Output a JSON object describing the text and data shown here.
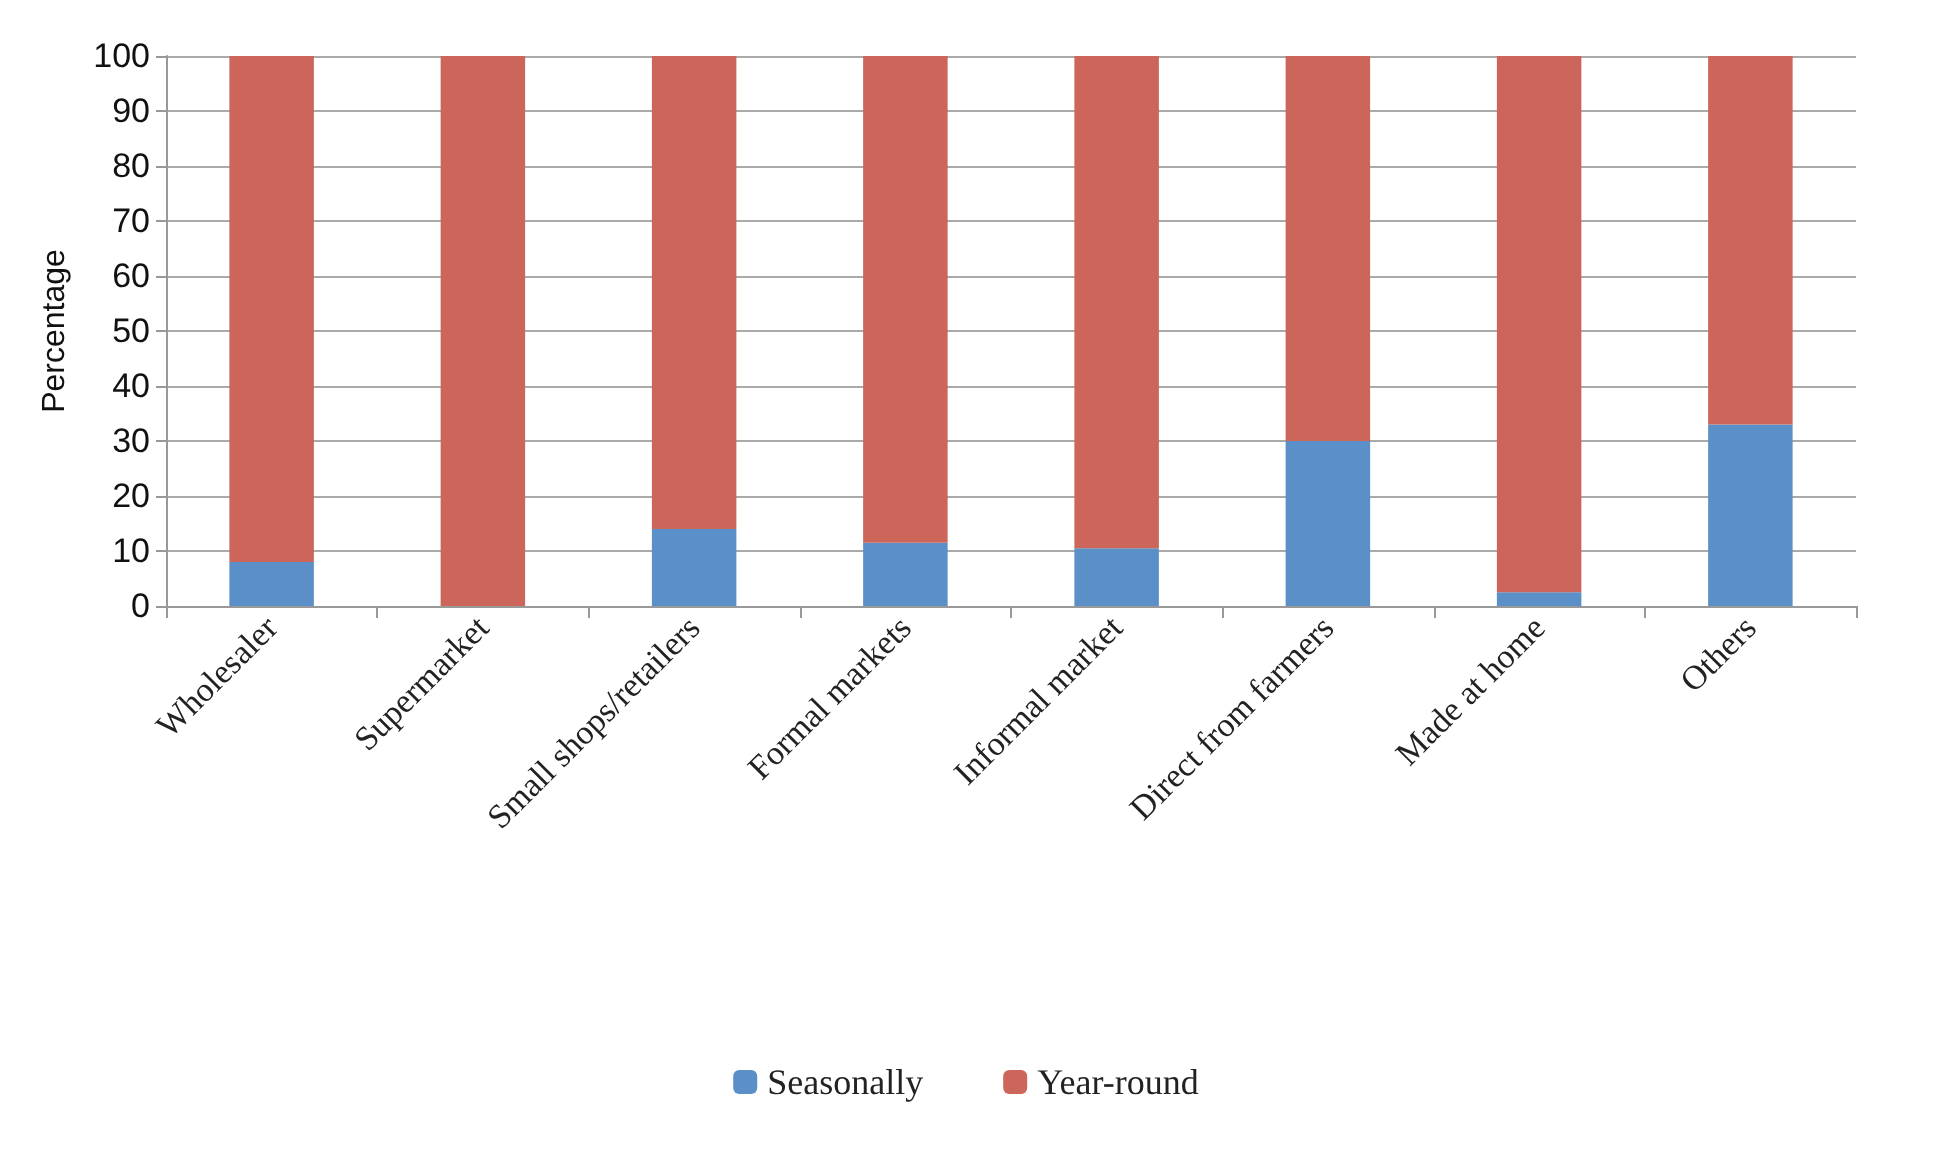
{
  "chart_data": {
    "type": "bar",
    "stacked": true,
    "ylabel": "Percentage",
    "categories": [
      "Wholesaler",
      "Supermarket",
      "Small shops/retailers",
      "Formal markets",
      "Informal market",
      "Direct from farmers",
      "Made at home",
      "Others"
    ],
    "series": [
      {
        "name": "Seasonally",
        "color": "#5b8fc7",
        "values": [
          8,
          0,
          14,
          11.5,
          10.5,
          30,
          2.5,
          33
        ]
      },
      {
        "name": "Year-round",
        "color": "#cc665b",
        "values": [
          92,
          100,
          86,
          88.5,
          89.5,
          70,
          97.5,
          67
        ]
      }
    ],
    "ylim": [
      0,
      100
    ],
    "yticks": [
      0,
      10,
      20,
      30,
      40,
      50,
      60,
      70,
      80,
      90,
      100
    ],
    "grid": "y",
    "legend": "bottom"
  }
}
